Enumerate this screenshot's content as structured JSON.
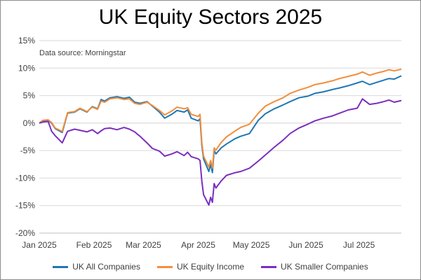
{
  "chart_data": {
    "type": "line",
    "title": "UK Equity Sectors 2025",
    "subtitle": "Data source: Morningstar",
    "xlabel": "",
    "ylabel": "",
    "x_ticks": [
      "Jan 2025",
      "Feb 2025",
      "Mar 2025",
      "Apr 2025",
      "May 2025",
      "Jun 2025",
      "Jul 2025"
    ],
    "y_ticks": [
      "15%",
      "10%",
      "5%",
      "0%",
      "-5%",
      "-10%",
      "-15%",
      "-20%"
    ],
    "ylim": [
      -20,
      15
    ],
    "xlim": [
      "2025-01-01",
      "2025-07-25"
    ],
    "grid": "horizontal",
    "legend_position": "bottom",
    "series": [
      {
        "name": "UK All Companies",
        "color": "#1f77b4",
        "points": [
          [
            "2025-01-01",
            0
          ],
          [
            "2025-01-03",
            0.4
          ],
          [
            "2025-01-06",
            0.5
          ],
          [
            "2025-01-08",
            0
          ],
          [
            "2025-01-10",
            -1.0
          ],
          [
            "2025-01-14",
            -1.7
          ],
          [
            "2025-01-17",
            1.8
          ],
          [
            "2025-01-21",
            2.0
          ],
          [
            "2025-01-24",
            2.6
          ],
          [
            "2025-01-28",
            2.0
          ],
          [
            "2025-01-31",
            3.0
          ],
          [
            "2025-02-03",
            2.6
          ],
          [
            "2025-02-05",
            4.3
          ],
          [
            "2025-02-07",
            4.0
          ],
          [
            "2025-02-10",
            4.6
          ],
          [
            "2025-02-14",
            4.8
          ],
          [
            "2025-02-18",
            4.5
          ],
          [
            "2025-02-21",
            4.7
          ],
          [
            "2025-02-24",
            3.8
          ],
          [
            "2025-02-27",
            3.6
          ],
          [
            "2025-03-03",
            3.9
          ],
          [
            "2025-03-06",
            3.1
          ],
          [
            "2025-03-10",
            2.0
          ],
          [
            "2025-03-13",
            0.9
          ],
          [
            "2025-03-17",
            1.6
          ],
          [
            "2025-03-20",
            2.3
          ],
          [
            "2025-03-24",
            2.0
          ],
          [
            "2025-03-26",
            2.4
          ],
          [
            "2025-03-28",
            0.9
          ],
          [
            "2025-04-01",
            0.4
          ],
          [
            "2025-04-02",
            0.8
          ],
          [
            "2025-04-03",
            -4.0
          ],
          [
            "2025-04-04",
            -6.5
          ],
          [
            "2025-04-07",
            -8.8
          ],
          [
            "2025-04-08",
            -7.5
          ],
          [
            "2025-04-09",
            -9.0
          ],
          [
            "2025-04-10",
            -5.0
          ],
          [
            "2025-04-11",
            -5.6
          ],
          [
            "2025-04-14",
            -4.5
          ],
          [
            "2025-04-17",
            -3.8
          ],
          [
            "2025-04-22",
            -2.8
          ],
          [
            "2025-04-25",
            -2.4
          ],
          [
            "2025-04-30",
            -1.9
          ],
          [
            "2025-05-05",
            0.5
          ],
          [
            "2025-05-09",
            1.7
          ],
          [
            "2025-05-14",
            2.6
          ],
          [
            "2025-05-19",
            3.3
          ],
          [
            "2025-05-23",
            3.9
          ],
          [
            "2025-05-28",
            4.6
          ],
          [
            "2025-06-02",
            4.9
          ],
          [
            "2025-06-06",
            5.4
          ],
          [
            "2025-06-11",
            5.7
          ],
          [
            "2025-06-16",
            6.1
          ],
          [
            "2025-06-20",
            6.4
          ],
          [
            "2025-06-25",
            6.8
          ],
          [
            "2025-06-30",
            7.3
          ],
          [
            "2025-07-03",
            7.6
          ],
          [
            "2025-07-07",
            7.0
          ],
          [
            "2025-07-11",
            7.4
          ],
          [
            "2025-07-15",
            7.8
          ],
          [
            "2025-07-18",
            8.1
          ],
          [
            "2025-07-21",
            8.0
          ],
          [
            "2025-07-25",
            8.6
          ]
        ]
      },
      {
        "name": "UK Equity Income",
        "color": "#f28e3c",
        "points": [
          [
            "2025-01-01",
            0
          ],
          [
            "2025-01-03",
            0.5
          ],
          [
            "2025-01-06",
            0.6
          ],
          [
            "2025-01-08",
            0.1
          ],
          [
            "2025-01-10",
            -0.9
          ],
          [
            "2025-01-14",
            -1.5
          ],
          [
            "2025-01-17",
            1.9
          ],
          [
            "2025-01-21",
            2.1
          ],
          [
            "2025-01-24",
            2.7
          ],
          [
            "2025-01-28",
            2.1
          ],
          [
            "2025-01-31",
            2.9
          ],
          [
            "2025-02-03",
            2.5
          ],
          [
            "2025-02-05",
            4.0
          ],
          [
            "2025-02-07",
            3.8
          ],
          [
            "2025-02-10",
            4.4
          ],
          [
            "2025-02-14",
            4.6
          ],
          [
            "2025-02-18",
            4.3
          ],
          [
            "2025-02-21",
            4.4
          ],
          [
            "2025-02-24",
            3.6
          ],
          [
            "2025-02-27",
            3.4
          ],
          [
            "2025-03-03",
            3.8
          ],
          [
            "2025-03-06",
            3.2
          ],
          [
            "2025-03-10",
            2.3
          ],
          [
            "2025-03-13",
            1.5
          ],
          [
            "2025-03-17",
            2.2
          ],
          [
            "2025-03-20",
            2.9
          ],
          [
            "2025-03-24",
            2.6
          ],
          [
            "2025-03-26",
            2.8
          ],
          [
            "2025-03-28",
            1.6
          ],
          [
            "2025-04-01",
            1.2
          ],
          [
            "2025-04-02",
            1.6
          ],
          [
            "2025-04-03",
            -3.5
          ],
          [
            "2025-04-04",
            -6.0
          ],
          [
            "2025-04-07",
            -8.0
          ],
          [
            "2025-04-08",
            -6.8
          ],
          [
            "2025-04-09",
            -8.2
          ],
          [
            "2025-04-10",
            -4.5
          ],
          [
            "2025-04-11",
            -4.9
          ],
          [
            "2025-04-14",
            -3.5
          ],
          [
            "2025-04-17",
            -2.5
          ],
          [
            "2025-04-22",
            -1.4
          ],
          [
            "2025-04-25",
            -0.8
          ],
          [
            "2025-04-30",
            -0.2
          ],
          [
            "2025-05-05",
            1.8
          ],
          [
            "2025-05-09",
            3.1
          ],
          [
            "2025-05-14",
            3.9
          ],
          [
            "2025-05-19",
            4.6
          ],
          [
            "2025-05-23",
            5.4
          ],
          [
            "2025-05-28",
            6.0
          ],
          [
            "2025-06-02",
            6.5
          ],
          [
            "2025-06-06",
            7.0
          ],
          [
            "2025-06-11",
            7.3
          ],
          [
            "2025-06-16",
            7.7
          ],
          [
            "2025-06-20",
            8.1
          ],
          [
            "2025-06-25",
            8.5
          ],
          [
            "2025-06-30",
            8.9
          ],
          [
            "2025-07-03",
            9.3
          ],
          [
            "2025-07-07",
            8.7
          ],
          [
            "2025-07-11",
            9.1
          ],
          [
            "2025-07-15",
            9.4
          ],
          [
            "2025-07-18",
            9.7
          ],
          [
            "2025-07-21",
            9.5
          ],
          [
            "2025-07-25",
            9.8
          ]
        ]
      },
      {
        "name": "UK Smaller Companies",
        "color": "#7b2fbe",
        "points": [
          [
            "2025-01-01",
            0
          ],
          [
            "2025-01-03",
            0.2
          ],
          [
            "2025-01-06",
            0.3
          ],
          [
            "2025-01-08",
            -1.5
          ],
          [
            "2025-01-10",
            -2.3
          ],
          [
            "2025-01-14",
            -3.6
          ],
          [
            "2025-01-17",
            -1.5
          ],
          [
            "2025-01-21",
            -1.1
          ],
          [
            "2025-01-24",
            -1.3
          ],
          [
            "2025-01-28",
            -1.6
          ],
          [
            "2025-01-31",
            -1.2
          ],
          [
            "2025-02-03",
            -1.9
          ],
          [
            "2025-02-05",
            -1.4
          ],
          [
            "2025-02-07",
            -1.0
          ],
          [
            "2025-02-10",
            -0.9
          ],
          [
            "2025-02-14",
            -1.2
          ],
          [
            "2025-02-18",
            -0.8
          ],
          [
            "2025-02-21",
            -1.1
          ],
          [
            "2025-02-24",
            -1.6
          ],
          [
            "2025-02-27",
            -2.4
          ],
          [
            "2025-03-03",
            -3.6
          ],
          [
            "2025-03-06",
            -4.6
          ],
          [
            "2025-03-10",
            -5.1
          ],
          [
            "2025-03-13",
            -6.0
          ],
          [
            "2025-03-17",
            -5.6
          ],
          [
            "2025-03-20",
            -5.2
          ],
          [
            "2025-03-24",
            -5.9
          ],
          [
            "2025-03-26",
            -5.3
          ],
          [
            "2025-03-28",
            -6.1
          ],
          [
            "2025-04-01",
            -6.5
          ],
          [
            "2025-04-02",
            -6.8
          ],
          [
            "2025-04-03",
            -10.5
          ],
          [
            "2025-04-04",
            -13.0
          ],
          [
            "2025-04-07",
            -14.9
          ],
          [
            "2025-04-08",
            -13.5
          ],
          [
            "2025-04-09",
            -14.4
          ],
          [
            "2025-04-10",
            -11.0
          ],
          [
            "2025-04-11",
            -11.8
          ],
          [
            "2025-04-14",
            -10.5
          ],
          [
            "2025-04-17",
            -9.5
          ],
          [
            "2025-04-22",
            -9.0
          ],
          [
            "2025-04-25",
            -8.8
          ],
          [
            "2025-04-30",
            -8.2
          ],
          [
            "2025-05-05",
            -6.9
          ],
          [
            "2025-05-09",
            -5.8
          ],
          [
            "2025-05-14",
            -4.4
          ],
          [
            "2025-05-19",
            -3.1
          ],
          [
            "2025-05-23",
            -1.9
          ],
          [
            "2025-05-28",
            -0.9
          ],
          [
            "2025-06-02",
            -0.2
          ],
          [
            "2025-06-06",
            0.4
          ],
          [
            "2025-06-11",
            0.9
          ],
          [
            "2025-06-16",
            1.3
          ],
          [
            "2025-06-20",
            1.8
          ],
          [
            "2025-06-25",
            2.4
          ],
          [
            "2025-06-30",
            2.7
          ],
          [
            "2025-07-03",
            4.4
          ],
          [
            "2025-07-07",
            3.4
          ],
          [
            "2025-07-11",
            3.6
          ],
          [
            "2025-07-15",
            3.9
          ],
          [
            "2025-07-18",
            4.2
          ],
          [
            "2025-07-21",
            3.8
          ],
          [
            "2025-07-25",
            4.1
          ]
        ]
      }
    ]
  }
}
